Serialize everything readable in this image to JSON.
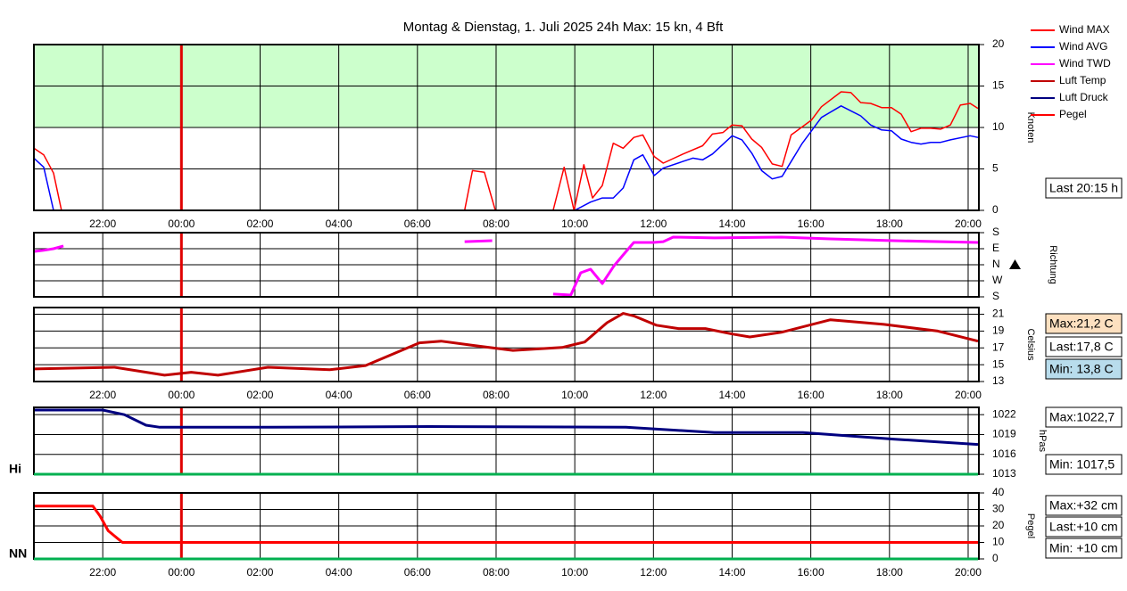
{
  "chart_data": {
    "type": "multi",
    "title": "Montag & Dienstag, 1. Juli 2025 24h Max: 15 kn, 4 Bft",
    "xlim": [
      -3.75,
      20.25
    ],
    "xticks": [
      {
        "value": -2,
        "label": "22:00"
      },
      {
        "value": 0,
        "label": "00:00"
      },
      {
        "value": 2,
        "label": "02:00"
      },
      {
        "value": 4,
        "label": "04:00"
      },
      {
        "value": 6,
        "label": "06:00"
      },
      {
        "value": 8,
        "label": "08:00"
      },
      {
        "value": 10,
        "label": "10:00"
      },
      {
        "value": 12,
        "label": "12:00"
      },
      {
        "value": 14,
        "label": "14:00"
      },
      {
        "value": 16,
        "label": "16:00"
      },
      {
        "value": 18,
        "label": "18:00"
      },
      {
        "value": 20,
        "label": "20:00"
      }
    ],
    "day_boundary": 0,
    "day_boundary_color": "#e00000",
    "grid": true,
    "legend": "top-right",
    "panels": [
      {
        "type": "line",
        "y_label": "Knoten",
        "ylim": [
          0,
          20
        ],
        "yticks": [
          0,
          5,
          10,
          15,
          20
        ],
        "xtick_labels": true,
        "band": {
          "from": 10,
          "to": 20,
          "color": "#ccffcc"
        },
        "series": [
          {
            "name": "Wind MAX",
            "color": "#ff0000",
            "line_width": 1.5,
            "x": [
              -3.75,
              -3.5,
              -3.25,
              -3.05,
              7.2,
              7.4,
              7.7,
              7.98,
              9.45,
              9.73,
              9.98,
              10.23,
              10.45,
              10.7,
              10.98,
              11.23,
              11.5,
              11.73,
              12.02,
              12.25,
              12.75,
              13.25,
              13.5,
              13.77,
              14.0,
              14.25,
              14.5,
              14.75,
              15.02,
              15.27,
              15.5,
              16.02,
              16.27,
              16.77,
              17.02,
              17.27,
              17.52,
              17.8,
              18.05,
              18.3,
              18.55,
              18.8,
              19.05,
              19.3,
              19.55,
              19.8,
              20.05,
              20.25
            ],
            "values": [
              7.5,
              6.7,
              4.5,
              0,
              0,
              4.8,
              4.6,
              0,
              0,
              5.2,
              0,
              5.5,
              1.5,
              3,
              8.1,
              7.5,
              8.8,
              9.1,
              6.5,
              5.7,
              6.8,
              7.8,
              9.2,
              9.4,
              10.3,
              10.2,
              8.6,
              7.6,
              5.6,
              5.3,
              9.1,
              10.9,
              12.5,
              14.3,
              14.2,
              13,
              12.9,
              12.4,
              12.4,
              11.6,
              9.5,
              9.9,
              9.9,
              9.8,
              10.3,
              12.7,
              12.9,
              12.3
            ]
          },
          {
            "name": "Wind AVG",
            "color": "#0000ff",
            "line_width": 1.5,
            "x": [
              -3.75,
              -3.5,
              -3.25,
              10.0,
              10.4,
              10.7,
              10.98,
              11.23,
              11.5,
              11.73,
              12.02,
              12.25,
              12.75,
              13.0,
              13.25,
              13.5,
              14.0,
              14.25,
              14.5,
              14.75,
              15.02,
              15.27,
              15.77,
              16.27,
              16.77,
              17.27,
              17.52,
              17.8,
              18.05,
              18.3,
              18.55,
              18.8,
              19.05,
              19.3,
              19.55,
              20.05,
              20.25
            ],
            "values": [
              6.3,
              5.2,
              0,
              0,
              1,
              1.5,
              1.5,
              2.7,
              6.1,
              6.7,
              4.2,
              5.1,
              5.9,
              6.3,
              6.1,
              6.8,
              9,
              8.5,
              6.9,
              4.8,
              3.8,
              4.1,
              8,
              11.2,
              12.6,
              11.4,
              10.3,
              9.7,
              9.6,
              8.6,
              8.2,
              8,
              8.2,
              8.2,
              8.5,
              9,
              8.8
            ]
          }
        ],
        "info": [
          {
            "text": "Last 20:15 h",
            "bg": "#ffffff"
          }
        ]
      },
      {
        "type": "line",
        "y_label": "Richtung",
        "ylim": [
          0,
          4
        ],
        "yticks": [
          {
            "value": 0,
            "label": "S"
          },
          {
            "value": 1,
            "label": "W"
          },
          {
            "value": 2,
            "label": "N"
          },
          {
            "value": 3,
            "label": "E"
          },
          {
            "value": 4,
            "label": "S"
          }
        ],
        "xtick_labels": false,
        "indicator": 2,
        "series": [
          {
            "name": "Wind TWD",
            "color": "#ff00ff",
            "line_width": 3,
            "x": [
              -3.75,
              -3.5,
              -3.25,
              -3.0,
              -2.75,
              7.2,
              7.9,
              8.2,
              9.45,
              9.9,
              10.15,
              10.4,
              10.7,
              11.0,
              11.25,
              11.5,
              12.0,
              12.25,
              12.5,
              13.55,
              15.25,
              16.5,
              18.1,
              20.25
            ],
            "values": [
              2.83,
              2.9,
              3.0,
              3.17,
              null,
              3.44,
              3.5,
              null,
              0.17,
              0.11,
              1.5,
              1.72,
              0.83,
              1.94,
              2.67,
              3.39,
              3.39,
              3.44,
              3.72,
              3.67,
              3.72,
              3.61,
              3.5,
              3.39
            ]
          }
        ],
        "info": []
      },
      {
        "type": "line",
        "y_label": "Celsius",
        "ylim": [
          13,
          21.8
        ],
        "yticks": [
          13,
          15,
          17,
          19,
          21
        ],
        "xtick_labels": true,
        "series": [
          {
            "name": "Luft Temp",
            "color": "#c00000",
            "line_width": 3,
            "x": [
              -3.75,
              -1.7,
              -0.43,
              0.25,
              0.93,
              2.2,
              3.77,
              4.68,
              6.05,
              6.6,
              7.4,
              8.43,
              9.68,
              10.25,
              10.82,
              11.23,
              11.5,
              12.07,
              12.64,
              13.32,
              14.0,
              14.45,
              15.25,
              16.5,
              17.86,
              19.23,
              20.25
            ],
            "values": [
              14.5,
              14.7,
              13.75,
              14.1,
              13.75,
              14.7,
              14.4,
              14.9,
              17.6,
              17.8,
              17.3,
              16.7,
              17.05,
              17.7,
              20.0,
              21.1,
              20.8,
              19.7,
              19.3,
              19.3,
              18.65,
              18.3,
              18.85,
              20.35,
              19.8,
              19.0,
              17.8
            ]
          }
        ],
        "info": [
          {
            "text": "Max:21,2 C",
            "bg": "#fde0c0"
          },
          {
            "text": "Last:17,8 C",
            "bg": "#ffffff"
          },
          {
            "text": "Min: 13,8 C",
            "bg": "#b8dcec"
          }
        ]
      },
      {
        "type": "line",
        "y_label": "hPas",
        "ylim": [
          1013,
          1023.1
        ],
        "yticks": [
          1013,
          1016,
          1019,
          1022
        ],
        "xtick_labels": false,
        "side_label": "Hi",
        "baseline_color": "#00b050",
        "series": [
          {
            "name": "Luft Druck",
            "color": "#000080",
            "line_width": 3,
            "x": [
              -3.75,
              -2.0,
              -1.45,
              -0.9,
              -0.55,
              2.2,
              6.3,
              11.3,
              13.55,
              15.8,
              18.1,
              20.25
            ],
            "values": [
              1022.7,
              1022.7,
              1022,
              1020.4,
              1020.1,
              1020.1,
              1020.2,
              1020.1,
              1019.3,
              1019.3,
              1018.3,
              1017.5
            ]
          }
        ],
        "info": [
          {
            "text": "Max:1022,7",
            "bg": "#ffffff"
          },
          {
            "text": "Min: 1017,5",
            "bg": "#ffffff"
          }
        ]
      },
      {
        "type": "line",
        "y_label": "Pegel",
        "ylim": [
          0,
          40
        ],
        "yticks": [
          0,
          10,
          20,
          30,
          40
        ],
        "xtick_labels": true,
        "side_label": "NN",
        "baseline_color": "#00b050",
        "series": [
          {
            "name": "Pegel",
            "color": "#ff0000",
            "line_width": 3,
            "x": [
              -3.75,
              -2.25,
              -2.07,
              -1.86,
              -1.5,
              20.25
            ],
            "values": [
              32,
              32,
              26,
              17,
              10,
              10
            ]
          }
        ],
        "info": [
          {
            "text": "Max:+32 cm",
            "bg": "#ffffff"
          },
          {
            "text": "Last:+10 cm",
            "bg": "#ffffff"
          },
          {
            "text": "Min: +10 cm",
            "bg": "#ffffff"
          }
        ]
      }
    ]
  }
}
